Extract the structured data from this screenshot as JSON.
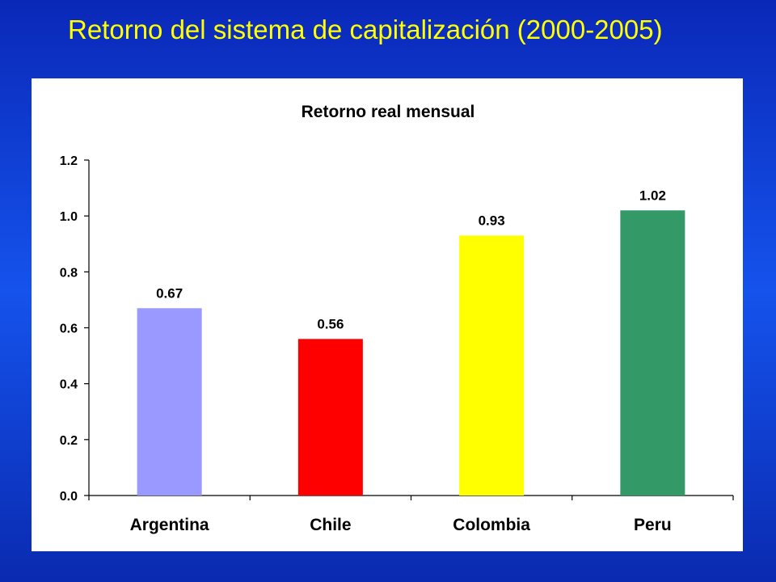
{
  "slide": {
    "title": "Retorno del sistema de capitalización (2000-2005)"
  },
  "chart_data": {
    "type": "bar",
    "title": "Retorno real mensual",
    "xlabel": "",
    "ylabel": "",
    "categories": [
      "Argentina",
      "Chile",
      "Colombia",
      "Peru"
    ],
    "values": [
      0.67,
      0.56,
      0.93,
      1.02
    ],
    "data_labels": [
      "0.67",
      "0.56",
      "0.93",
      "1.02"
    ],
    "bar_colors": [
      "#9999ff",
      "#ff0000",
      "#ffff00",
      "#339966"
    ],
    "ylim": [
      0,
      1.2
    ],
    "yticks": [
      "0.0",
      "0.2",
      "0.4",
      "0.6",
      "0.8",
      "1.0",
      "1.2"
    ],
    "grid": false,
    "legend": "none"
  }
}
